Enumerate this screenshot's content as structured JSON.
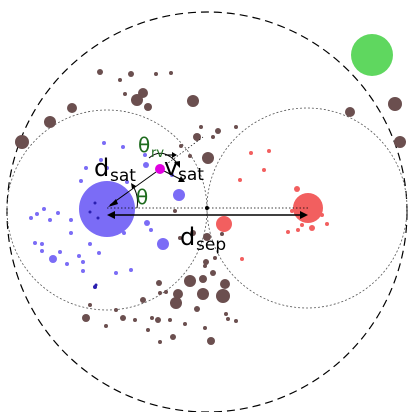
{
  "labels": {
    "d_sat": "d",
    "d_sat_sub": "sat",
    "v_sat": "v",
    "v_sat_sub": "sat",
    "theta_rv": "θ",
    "theta_rv_sub": "rv",
    "theta": "θ",
    "d_sep": "d",
    "d_sep_sub": "sep"
  },
  "colors": {
    "blue_host": "#7b6cf6",
    "red_host": "#f25f5f",
    "brown": "#6b4f4f",
    "green_big": "#5fd75f",
    "magenta_sat": "#e000e0",
    "theta_green": "#1e6b1e"
  }
}
